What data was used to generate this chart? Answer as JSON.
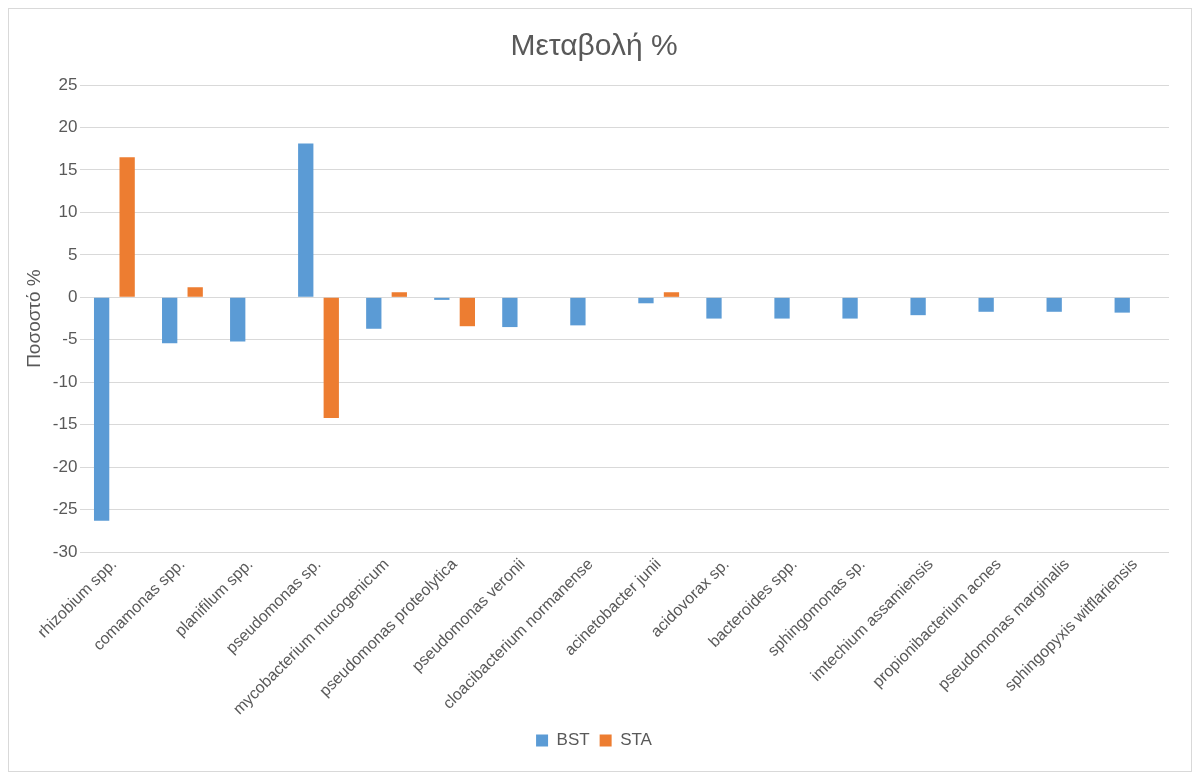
{
  "chart_data": {
    "type": "bar",
    "title": "Μεταβολή %",
    "ylabel": "Ποσοστό %",
    "categories": [
      "rhizobium spp.",
      "comamonas spp.",
      "planifilum spp.",
      "pseudomonas sp.",
      "mycobacterium mucogenicum",
      "pseudomonas proteolytica",
      "pseudomonas veronii",
      "cloacibacterium normanense",
      "acinetobacter junii",
      "acidovorax sp.",
      "bacteroides spp.",
      "sphingomonas sp.",
      "imtechium assamiensis",
      "propionibacterium acnes",
      "pseudomonas marginalis",
      "sphingopyxis witflariensis"
    ],
    "series": [
      {
        "name": "BST",
        "color": "#5b9bd5",
        "values": [
          -26.3,
          -5.4,
          -5.2,
          18.1,
          -3.7,
          -0.3,
          -3.5,
          -3.3,
          -0.7,
          -2.5,
          -2.5,
          -2.5,
          -2.1,
          -1.7,
          -1.7,
          -1.8
        ]
      },
      {
        "name": "STA",
        "color": "#ed7d31",
        "values": [
          16.5,
          1.2,
          0,
          -14.2,
          0.6,
          -3.4,
          0,
          null,
          0.6,
          0,
          0,
          0,
          0,
          null,
          null,
          0
        ]
      }
    ],
    "ylim": [
      -30,
      25
    ],
    "yticks": [
      -30,
      -25,
      -20,
      -15,
      -10,
      -5,
      0,
      5,
      10,
      15,
      20,
      25
    ],
    "grid": "y",
    "legend": "bottom"
  }
}
